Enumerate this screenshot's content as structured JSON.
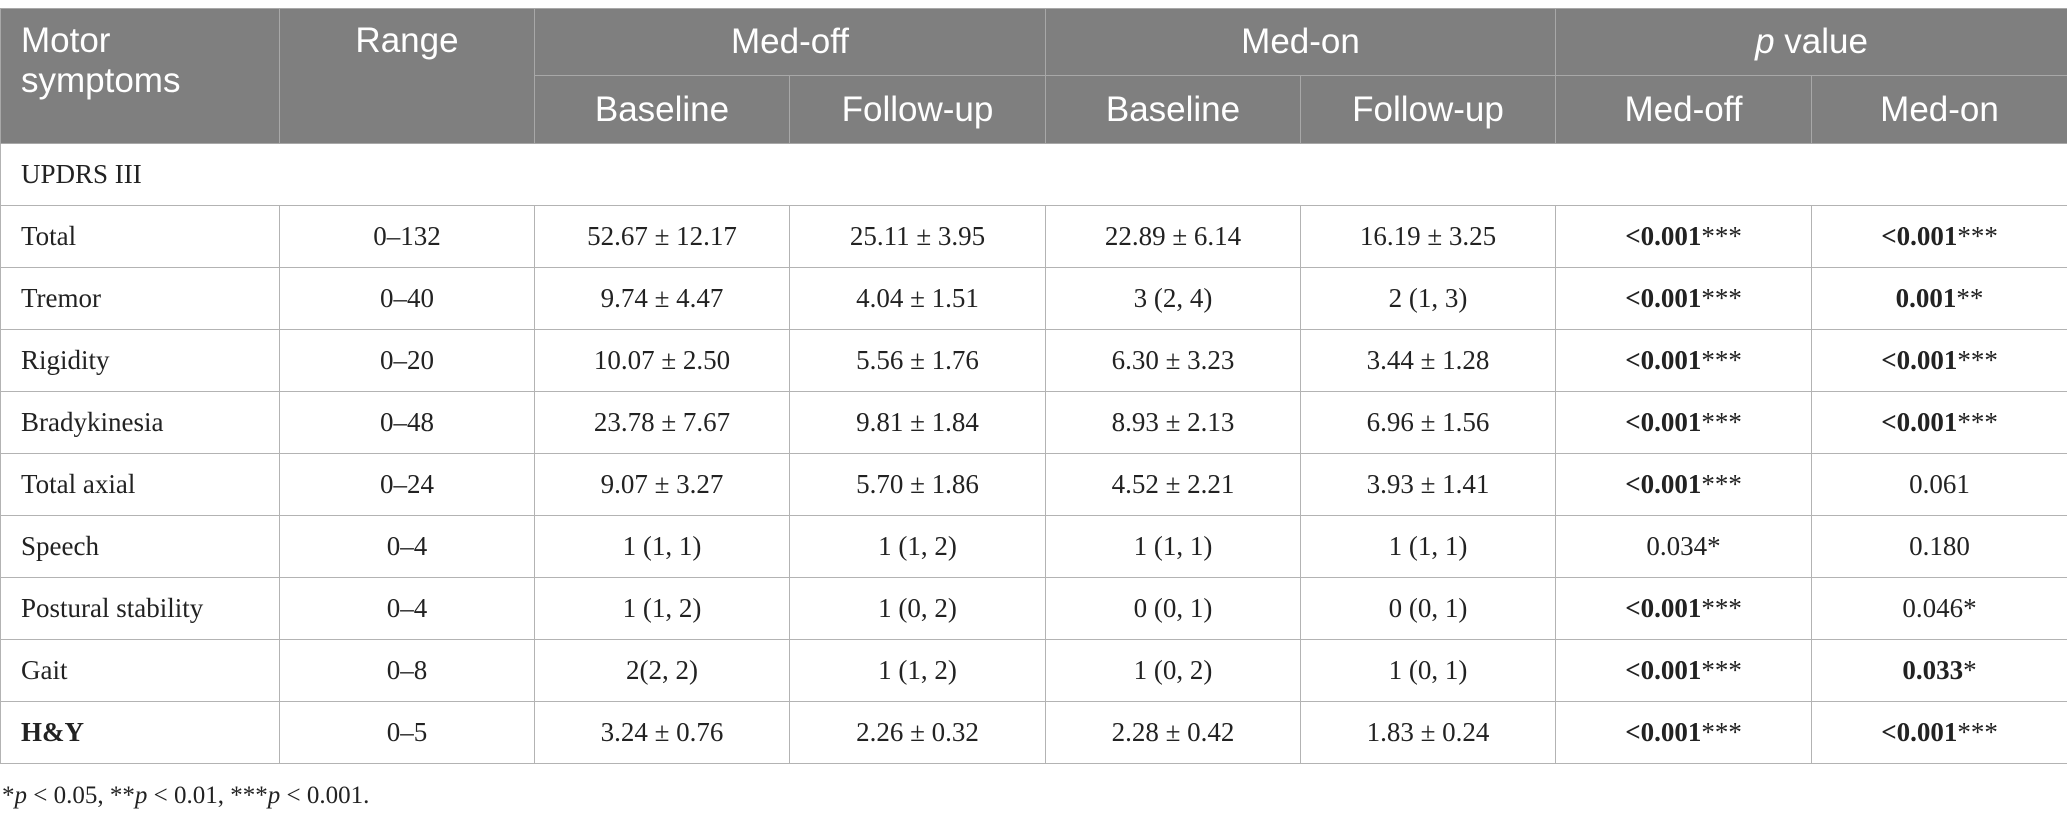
{
  "table": {
    "headers": {
      "motor_symptoms": "Motor symptoms",
      "range": "Range",
      "med_off": "Med-off",
      "med_on": "Med-on",
      "p_value_italic": "p",
      "p_value_rest": " value",
      "sub": [
        "Baseline",
        "Follow-up",
        "Baseline",
        "Follow-up",
        "Med-off",
        "Med-on"
      ]
    },
    "section_label": "UPDRS III",
    "rows": [
      {
        "label": "Total",
        "range": "0–132",
        "off_base": "52.67 ± 12.17",
        "off_fu": "25.11 ± 3.95",
        "on_base": "22.89 ± 6.14",
        "on_fu": "16.19 ± 3.25",
        "p_off": "<0.001",
        "p_off_stars": "***",
        "p_on": "<0.001",
        "p_on_stars": "***"
      },
      {
        "label": "Tremor",
        "range": "0–40",
        "off_base": "9.74 ± 4.47",
        "off_fu": "4.04 ± 1.51",
        "on_base": "3 (2, 4)",
        "on_fu": "2 (1, 3)",
        "p_off": "<0.001",
        "p_off_stars": "***",
        "p_on": "0.001",
        "p_on_stars": "**"
      },
      {
        "label": "Rigidity",
        "range": "0–20",
        "off_base": "10.07 ± 2.50",
        "off_fu": "5.56 ± 1.76",
        "on_base": "6.30 ± 3.23",
        "on_fu": "3.44 ± 1.28",
        "p_off": "<0.001",
        "p_off_stars": "***",
        "p_on": "<0.001",
        "p_on_stars": "***"
      },
      {
        "label": "Bradykinesia",
        "range": "0–48",
        "off_base": "23.78 ± 7.67",
        "off_fu": "9.81 ± 1.84",
        "on_base": "8.93 ± 2.13",
        "on_fu": "6.96 ± 1.56",
        "p_off": "<0.001",
        "p_off_stars": "***",
        "p_on": "<0.001",
        "p_on_stars": "***"
      },
      {
        "label": "Total axial",
        "range": "0–24",
        "off_base": "9.07 ± 3.27",
        "off_fu": "5.70 ± 1.86",
        "on_base": "4.52 ± 2.21",
        "on_fu": "3.93 ± 1.41",
        "p_off": "<0.001",
        "p_off_stars": "***",
        "p_on_plain": "0.061"
      },
      {
        "label": "Speech",
        "range": "0–4",
        "off_base": "1 (1, 1)",
        "off_fu": "1 (1, 2)",
        "on_base": "1 (1, 1)",
        "on_fu": "1 (1, 1)",
        "p_off_plain": "0.034*",
        "p_on_plain": "0.180"
      },
      {
        "label": "Postural stability",
        "range": "0–4",
        "off_base": "1 (1, 2)",
        "off_fu": "1 (0, 2)",
        "on_base": "0 (0, 1)",
        "on_fu": "0 (0, 1)",
        "p_off": "<0.001",
        "p_off_stars": "***",
        "p_on_plain": "0.046*"
      },
      {
        "label": "Gait",
        "range": "0–8",
        "off_base": "2(2, 2)",
        "off_fu": "1 (1, 2)",
        "on_base": "1 (0, 2)",
        "on_fu": "1 (0, 1)",
        "p_off": "<0.001",
        "p_off_stars": "***",
        "p_on": "0.033",
        "p_on_stars": "*"
      },
      {
        "label": "H&Y",
        "range": "0–5",
        "off_base": "3.24 ± 0.76",
        "off_fu": "2.26 ± 0.32",
        "on_base": "2.28 ± 0.42",
        "on_fu": "1.83 ± 0.24",
        "p_off": "<0.001",
        "p_off_stars": "***",
        "p_on": "<0.001",
        "p_on_stars": "***"
      }
    ]
  },
  "footnote": {
    "star1": "*",
    "p1": "p",
    "t1": " < 0.05, **",
    "p2": "p",
    "t2": " < 0.01, ***",
    "p3": "p",
    "t3": " < 0.001."
  }
}
